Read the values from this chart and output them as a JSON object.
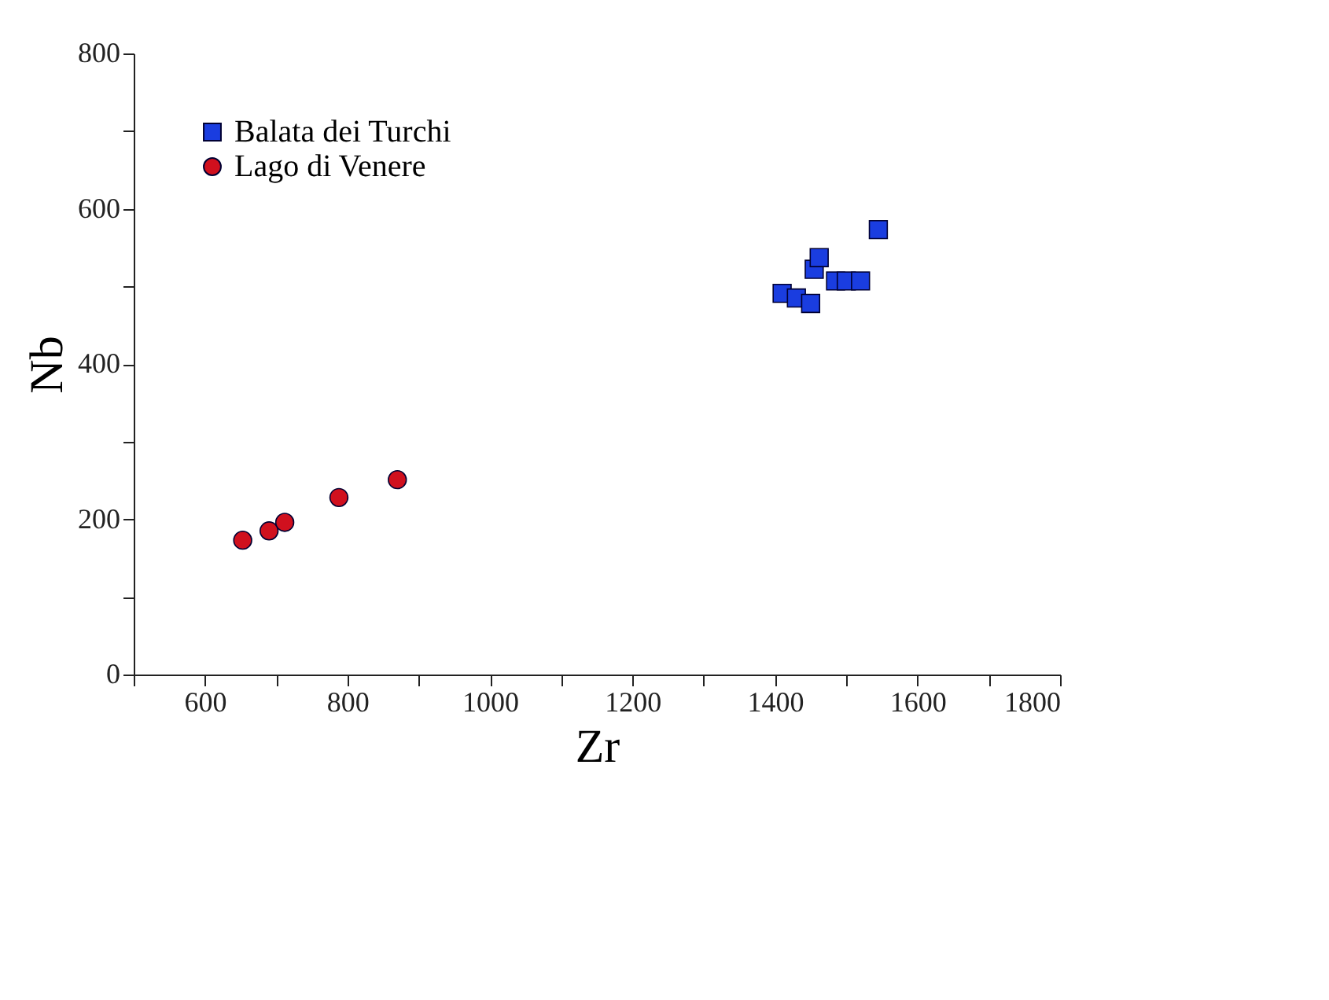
{
  "chart_data": {
    "type": "scatter",
    "xlabel": "Zr",
    "ylabel": "Nb",
    "xlim": [
      500,
      1800
    ],
    "ylim": [
      0,
      800
    ],
    "xticks": [
      {
        "value": 500,
        "label": null
      },
      600,
      {
        "value": 700,
        "label": null
      },
      800,
      {
        "value": 900,
        "label": null
      },
      1000,
      {
        "value": 1100,
        "label": null
      },
      1200,
      {
        "value": 1300,
        "label": null
      },
      1400,
      {
        "value": 1500,
        "label": null
      },
      1600,
      {
        "value": 1700,
        "label": null
      },
      1800
    ],
    "yticks": [
      0,
      {
        "value": 100,
        "label": null
      },
      200,
      {
        "value": 300,
        "label": null
      },
      400,
      {
        "value": 500,
        "label": null
      },
      600,
      {
        "value": 700,
        "label": null
      },
      800
    ],
    "grid": false,
    "legend": "top left",
    "series": [
      {
        "name": "Balata dei Turchi",
        "color": "#1a3de0",
        "marker": "square",
        "x": [
          1410,
          1430,
          1450,
          1455,
          1462,
          1485,
          1500,
          1520,
          1545
        ],
        "values": [
          491,
          485,
          478,
          522,
          537,
          507,
          507,
          507,
          573
        ]
      },
      {
        "name": "Lago di Venere",
        "color": "#d0101e",
        "marker": "circle",
        "x": [
          653,
          690,
          712,
          788,
          870
        ],
        "values": [
          173,
          185,
          196,
          228,
          251
        ]
      }
    ]
  }
}
